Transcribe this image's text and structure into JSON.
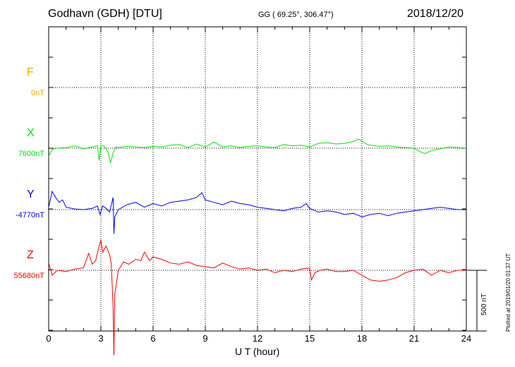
{
  "header": {
    "station": "Godhavn (GDH)  [DTU]",
    "coords": "GG ( 69.25°, 306.47°)",
    "date": "2018/12/20"
  },
  "footer": "Plotted at 2019/01/20 01:37 UT",
  "scale_label": "500 nT",
  "chart_data": {
    "type": "line",
    "xlabel": "U T (hour)",
    "xlim": [
      0,
      24
    ],
    "xticks": [
      0,
      3,
      6,
      9,
      12,
      15,
      18,
      21,
      24
    ],
    "units": "nT",
    "scale_bar_nT": 500,
    "grid": true,
    "series": [
      {
        "name": "F",
        "baseline_label": "0nT",
        "color": "#ffa500",
        "x": [],
        "values": []
      },
      {
        "name": "X",
        "baseline_label": "7600nT",
        "color": "#00e600",
        "x": [
          0,
          0.2,
          0.5,
          1,
          1.5,
          2,
          2.5,
          2.8,
          2.9,
          3.0,
          3.2,
          3.4,
          3.55,
          3.7,
          3.85,
          4,
          4.5,
          5,
          5.5,
          6,
          6.5,
          7,
          7.5,
          8,
          8.5,
          9,
          9.5,
          10,
          10.5,
          11,
          11.5,
          12,
          12.5,
          13,
          13.5,
          14,
          14.5,
          15,
          15.5,
          16,
          16.5,
          17,
          17.5,
          17.8,
          18.0,
          18.3,
          18.5,
          19,
          19.5,
          20,
          20.5,
          21,
          21.3,
          21.6,
          22,
          22.5,
          23,
          23.5,
          24
        ],
        "values": [
          -70,
          -10,
          0,
          5,
          20,
          -5,
          10,
          20,
          -100,
          25,
          15,
          -30,
          -120,
          -40,
          10,
          5,
          15,
          10,
          5,
          15,
          10,
          25,
          30,
          5,
          35,
          10,
          50,
          10,
          20,
          5,
          15,
          20,
          10,
          5,
          30,
          20,
          25,
          10,
          40,
          45,
          35,
          40,
          55,
          75,
          60,
          30,
          25,
          15,
          20,
          10,
          5,
          0,
          -25,
          -45,
          -20,
          -5,
          10,
          5,
          0
        ]
      },
      {
        "name": "Y",
        "baseline_label": "-4770nT",
        "color": "#0000ff",
        "x": [
          0,
          0.2,
          0.4,
          0.6,
          0.8,
          1,
          1.5,
          2,
          2.5,
          2.8,
          2.95,
          3.1,
          3.3,
          3.5,
          3.7,
          3.75,
          3.8,
          4,
          4.5,
          5,
          5.5,
          6,
          6.5,
          7,
          7.5,
          8,
          8.5,
          8.8,
          9,
          9.5,
          10,
          10.5,
          11,
          11.5,
          12,
          12.5,
          13,
          13.5,
          14,
          14.5,
          14.8,
          15,
          15.5,
          16,
          16.5,
          17,
          17.5,
          18,
          18.5,
          19,
          19.5,
          20,
          20.5,
          21,
          21.5,
          22,
          22.5,
          23,
          23.5,
          24
        ],
        "values": [
          20,
          150,
          100,
          60,
          80,
          20,
          5,
          0,
          10,
          30,
          -40,
          30,
          10,
          -20,
          100,
          -200,
          -60,
          0,
          40,
          60,
          20,
          50,
          30,
          60,
          70,
          80,
          100,
          140,
          80,
          60,
          40,
          70,
          50,
          40,
          20,
          10,
          0,
          -10,
          10,
          20,
          50,
          10,
          -20,
          -10,
          -20,
          -40,
          -30,
          -60,
          -40,
          -30,
          -50,
          -30,
          -20,
          -10,
          0,
          10,
          20,
          10,
          0,
          0
        ]
      },
      {
        "name": "Z",
        "baseline_label": "55680nT",
        "color": "#ff0000",
        "x": [
          0,
          0.2,
          0.5,
          1,
          1.5,
          2,
          2.3,
          2.5,
          2.7,
          2.9,
          3.0,
          3.1,
          3.3,
          3.5,
          3.6,
          3.7,
          3.75,
          3.8,
          4,
          4.3,
          4.6,
          5,
          5.3,
          5.5,
          5.8,
          6,
          6.5,
          7,
          7.5,
          8,
          8.5,
          9,
          9.5,
          10,
          10.5,
          11,
          11.5,
          12,
          12.5,
          13,
          13.5,
          14,
          14.5,
          15,
          15.1,
          15.3,
          15.6,
          16,
          16.5,
          17,
          17.5,
          18,
          18.5,
          19,
          19.5,
          20,
          20.5,
          21,
          21.5,
          22,
          22.5,
          23,
          23.5,
          24
        ],
        "values": [
          60,
          -40,
          0,
          -10,
          10,
          20,
          140,
          50,
          80,
          200,
          250,
          150,
          200,
          130,
          50,
          -300,
          -700,
          -200,
          0,
          70,
          50,
          90,
          80,
          150,
          80,
          110,
          90,
          60,
          50,
          70,
          40,
          30,
          20,
          60,
          30,
          10,
          20,
          0,
          10,
          -20,
          0,
          -10,
          10,
          20,
          -80,
          -20,
          0,
          10,
          -10,
          -10,
          0,
          -40,
          -80,
          -90,
          -80,
          -60,
          -20,
          0,
          10,
          -40,
          0,
          -20,
          0,
          0
        ]
      }
    ]
  }
}
